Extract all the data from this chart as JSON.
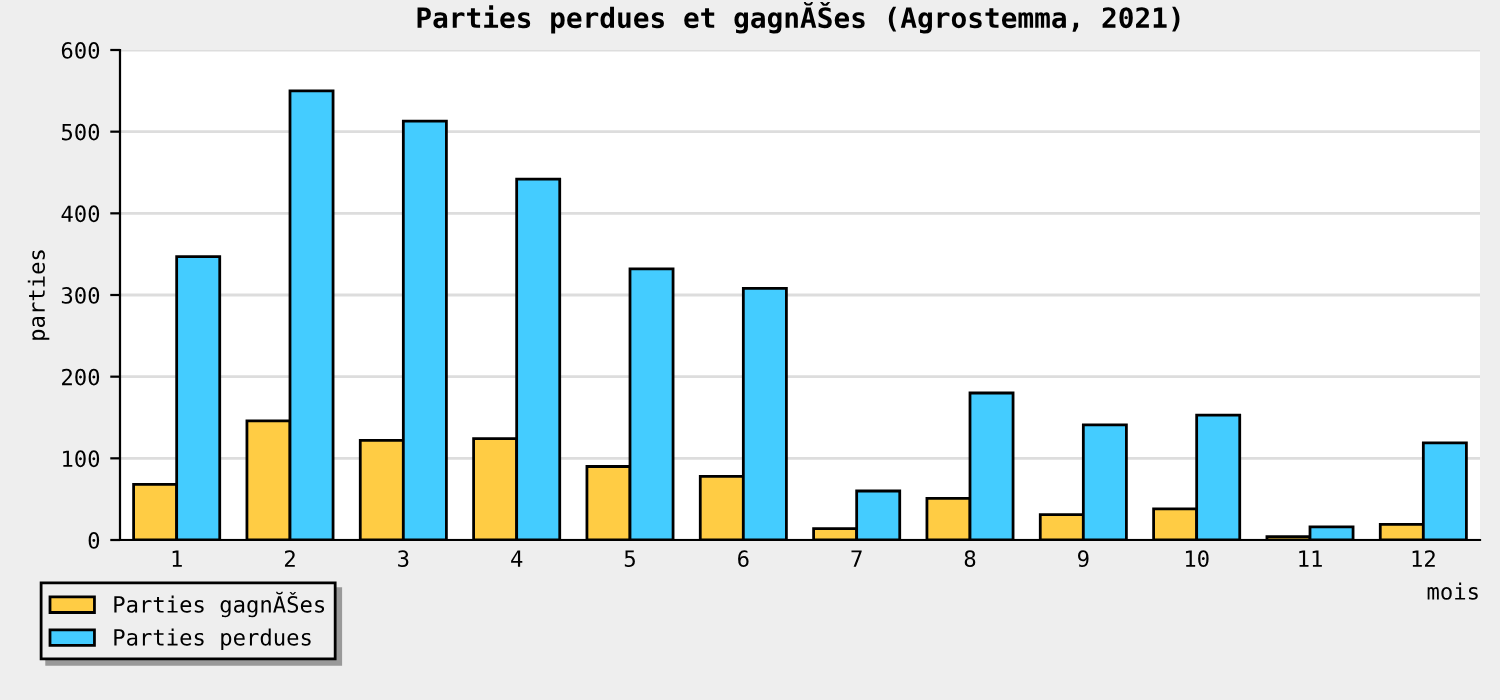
{
  "chart_data": {
    "type": "bar",
    "title": "Parties perdues et gagnĂŠes (Agrostemma, 2021)",
    "xlabel": "mois",
    "ylabel": "parties",
    "categories": [
      "1",
      "2",
      "3",
      "4",
      "5",
      "6",
      "7",
      "8",
      "9",
      "10",
      "11",
      "12"
    ],
    "series": [
      {
        "name": "Parties gagnĂŠes",
        "color": "#ffcc44",
        "values": [
          68,
          146,
          122,
          124,
          90,
          78,
          14,
          51,
          31,
          38,
          4,
          19
        ]
      },
      {
        "name": "Parties perdues",
        "color": "#44ccff",
        "values": [
          347,
          550,
          513,
          442,
          332,
          308,
          60,
          180,
          141,
          153,
          16,
          119
        ]
      }
    ],
    "ylim": [
      0,
      600
    ],
    "yticks": [
      0,
      100,
      200,
      300,
      400,
      500,
      600
    ],
    "grid": "y",
    "legend": "bottom left"
  }
}
